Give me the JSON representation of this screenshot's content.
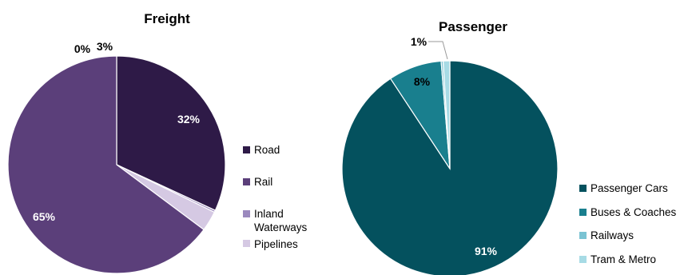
{
  "chart_data": [
    {
      "type": "pie",
      "title": "Freight",
      "slices": [
        {
          "label": "Road",
          "value": 32,
          "display": "32%",
          "color": "#2e1a47"
        },
        {
          "label": "Inland Waterways",
          "value": 0.3,
          "display": "0%",
          "color": "#9b89be"
        },
        {
          "label": "Pipelines",
          "value": 3,
          "display": "3%",
          "color": "#d5c9e3"
        },
        {
          "label": "Rail",
          "value": 65,
          "display": "65%",
          "color": "#5b3f7a"
        }
      ],
      "legend": [
        "Road",
        "Rail",
        "Inland Waterways",
        "Pipelines"
      ],
      "legend_colors": [
        "#2e1a47",
        "#5b3f7a",
        "#9b89be",
        "#d5c9e3"
      ]
    },
    {
      "type": "pie",
      "title": "Passenger",
      "slices": [
        {
          "label": "Passenger Cars",
          "value": 91,
          "display": "91%",
          "color": "#04515e"
        },
        {
          "label": "Buses & Coaches",
          "value": 8,
          "display": "8%",
          "color": "#197f8e"
        },
        {
          "label": "Railways",
          "value": 0.3,
          "display": "",
          "color": "#7ac3d3"
        },
        {
          "label": "Tram & Metro",
          "value": 1,
          "display": "1%",
          "color": "#a7dbe5"
        }
      ],
      "legend": [
        "Passenger Cars",
        "Buses & Coaches",
        "Railways",
        "Tram & Metro"
      ],
      "legend_colors": [
        "#04515e",
        "#197f8e",
        "#7ac3d3",
        "#a7dbe5"
      ]
    }
  ]
}
